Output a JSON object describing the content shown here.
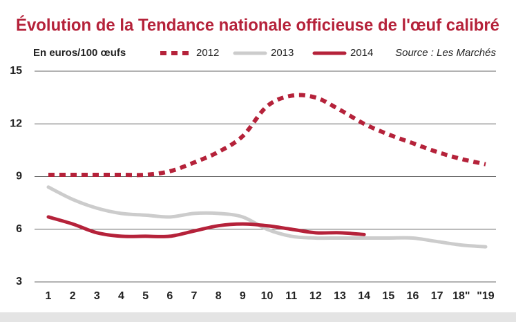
{
  "chart_data": {
    "type": "line",
    "title": "Évolution de la Tendance nationale officieuse de l'œuf calibré",
    "subtitle": "En euros/100 œufs",
    "source": "Source : Les Marchés",
    "categories": [
      "1",
      "2",
      "3",
      "4",
      "5",
      "6",
      "7",
      "8",
      "9",
      "10",
      "11",
      "12",
      "13",
      "14",
      "15",
      "16",
      "17",
      "18\"",
      "\"19"
    ],
    "series": [
      {
        "name": "2012",
        "color": "#b5223a",
        "dash": true,
        "values": [
          9.1,
          9.1,
          9.1,
          9.1,
          9.1,
          9.3,
          9.8,
          10.4,
          11.3,
          13.0,
          13.6,
          13.5,
          12.8,
          12.0,
          11.4,
          10.9,
          10.4,
          10.0,
          9.7
        ]
      },
      {
        "name": "2013",
        "color": "#cccccc",
        "dash": false,
        "values": [
          8.4,
          7.7,
          7.2,
          6.9,
          6.8,
          6.7,
          6.9,
          6.9,
          6.7,
          6.0,
          5.6,
          5.5,
          5.5,
          5.5,
          5.5,
          5.5,
          5.3,
          5.1,
          5.0
        ]
      },
      {
        "name": "2014",
        "color": "#b5223a",
        "dash": false,
        "values": [
          6.7,
          6.3,
          5.8,
          5.6,
          5.6,
          5.6,
          5.9,
          6.2,
          6.3,
          6.2,
          6.0,
          5.8,
          5.8,
          5.7,
          null,
          null,
          null,
          null,
          null
        ]
      }
    ],
    "ylim": [
      3,
      15
    ],
    "yticks": [
      3,
      6,
      9,
      12,
      15
    ],
    "grid": true
  }
}
